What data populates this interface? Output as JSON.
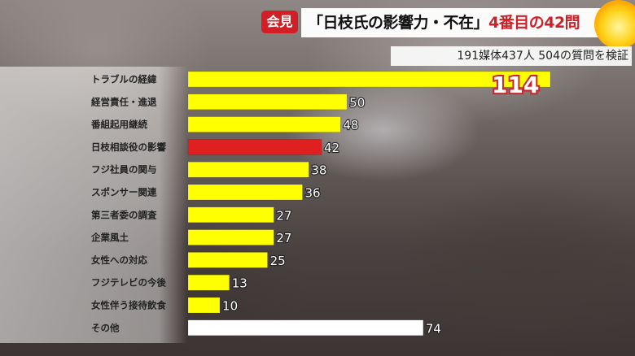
{
  "header": {
    "tag": "会見",
    "headline_quote": "「日枝氏の影響力・不在」",
    "headline_highlight": "4番目の42問",
    "subtitle": "191媒体437人 504の質問を検証"
  },
  "colors": {
    "bar_default": "#ffff00",
    "bar_highlight": "#e02020",
    "bar_other": "#ffffff",
    "tag_red": "#d21f26"
  },
  "chart_data": {
    "type": "bar",
    "orientation": "horizontal",
    "categories": [
      "トラブルの経緯",
      "経営責任・進退",
      "番組起用継続",
      "日枝相談役の影響",
      "フジ社員の関与",
      "スポンサー関連",
      "第三者委の調査",
      "企業風土",
      "女性への対応",
      "フジテレビの今後",
      "女性伴う接待飲食",
      "その他"
    ],
    "values": [
      114,
      50,
      48,
      42,
      38,
      36,
      27,
      27,
      25,
      13,
      10,
      74
    ],
    "highlight_index": 3,
    "other_index": 11,
    "title": "",
    "xlabel": "",
    "ylabel": "",
    "xlim": [
      0,
      114
    ],
    "grid": false,
    "legend": "none"
  }
}
